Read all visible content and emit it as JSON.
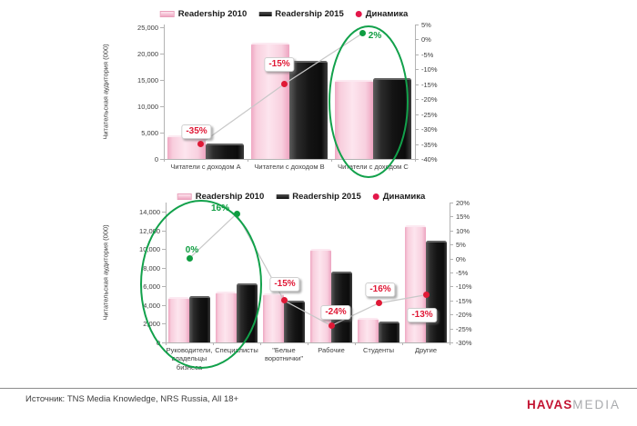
{
  "source_note": "Источник: TNS Media Knowledge, NRS Russia, All 18+",
  "logo": {
    "brand": "HAVAS",
    "suffix": "MEDIA"
  },
  "colors": {
    "pink_series": "#f6c6d7",
    "dark_series": "#1a1a1a",
    "negative_red": "#e01936",
    "positive_green": "#0f9d41",
    "highlight_ellipse": "#12a14b",
    "dynamics_line": "#c8c8c8"
  },
  "chart_data": [
    {
      "type": "bar",
      "title": "",
      "ylabel": "Читательская аудитория (000)",
      "categories": [
        "Читатели с доходом A",
        "Читатели с доходом B",
        "Читатели с доходом C"
      ],
      "series": [
        {
          "name": "Readership 2010",
          "values": [
            4500,
            22000,
            15000
          ]
        },
        {
          "name": "Readership 2015",
          "values": [
            2900,
            18700,
            15300
          ]
        }
      ],
      "dynamics": {
        "name": "Динамика",
        "values_pct": [
          -35,
          -15,
          2
        ],
        "labels": [
          "-35%",
          "-15%",
          "2%"
        ]
      },
      "ylim": [
        0,
        25000
      ],
      "ytick_step": 5000,
      "y2lim": [
        5,
        -40
      ],
      "y2tick_step": 5,
      "y2suffix": "%",
      "grid": false,
      "legend_position": "top",
      "highlight": "Читатели с доходом C"
    },
    {
      "type": "bar",
      "title": "",
      "ylabel": "Читательская аудитория (000)",
      "categories": [
        "Руководители,\nвладельцы\nбизнеса",
        "Специалисты",
        "\"Белые\nворотнички\"",
        "Рабочие",
        "Студенты",
        "Другие"
      ],
      "series": [
        {
          "name": "Readership 2010",
          "values": [
            4900,
            5400,
            5250,
            10000,
            2600,
            12500
          ]
        },
        {
          "name": "Readership 2015",
          "values": [
            4950,
            6300,
            4450,
            7600,
            2200,
            10900
          ]
        }
      ],
      "dynamics": {
        "name": "Динамика",
        "values_pct": [
          0,
          16,
          -15,
          -24,
          -16,
          -13
        ],
        "labels": [
          "0%",
          "16%",
          "-15%",
          "-24%",
          "-16%",
          "-13%"
        ]
      },
      "ylim": [
        0,
        14000
      ],
      "ytick_step": 2000,
      "y2lim": [
        20,
        -30
      ],
      "y2tick_step": 5,
      "y2suffix": "%",
      "grid": false,
      "legend_position": "top",
      "highlight": "Руководители, владельцы бизнеса + Специалисты"
    }
  ]
}
